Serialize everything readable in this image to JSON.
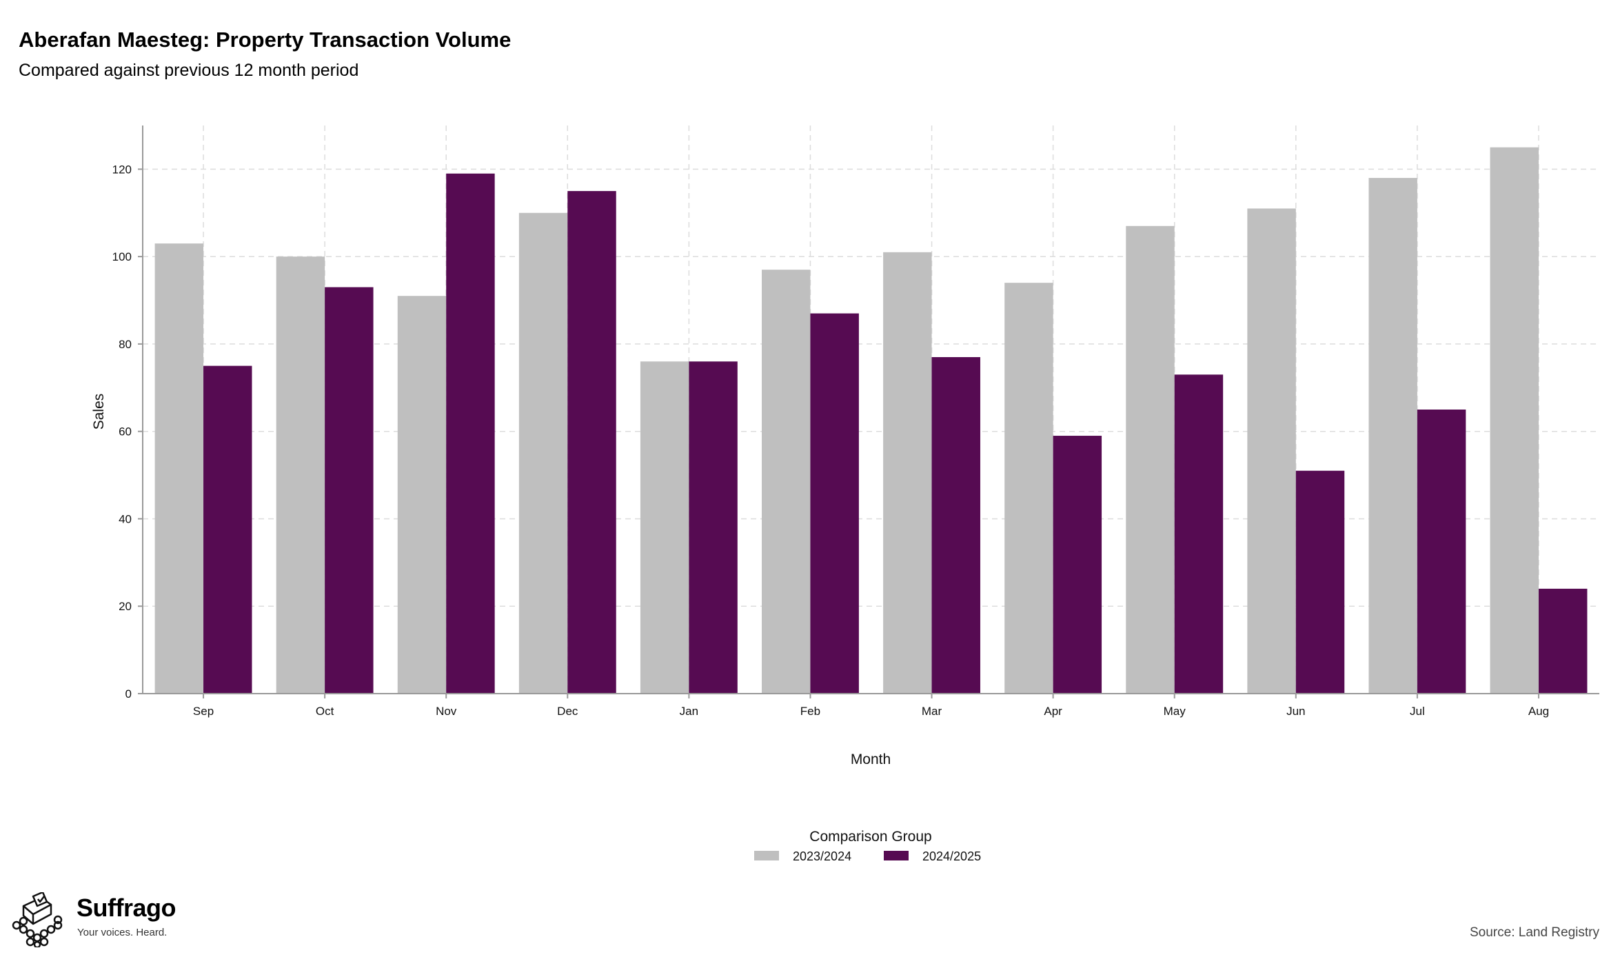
{
  "chart_data": {
    "type": "bar",
    "title": "Aberafan Maesteg: Property Transaction Volume",
    "subtitle": "Compared against previous 12 month period",
    "xlabel": "Month",
    "ylabel": "Sales",
    "ylim": [
      0,
      130
    ],
    "yticks": [
      0,
      20,
      40,
      60,
      80,
      100,
      120
    ],
    "grid": true,
    "legend_placement": "bottom",
    "legend_title": "Comparison Group",
    "categories": [
      "Sep",
      "Oct",
      "Nov",
      "Dec",
      "Jan",
      "Feb",
      "Mar",
      "Apr",
      "May",
      "Jun",
      "Jul",
      "Aug"
    ],
    "series": [
      {
        "name": "2023/2024",
        "color": "#bfbfbf",
        "values": [
          103,
          100,
          91,
          110,
          76,
          97,
          101,
          94,
          107,
          111,
          118,
          125
        ]
      },
      {
        "name": "2024/2025",
        "color": "#560b52",
        "values": [
          75,
          93,
          119,
          115,
          76,
          87,
          77,
          59,
          73,
          51,
          65,
          24
        ]
      }
    ]
  },
  "branding": {
    "name": "Suffrago",
    "tagline": "Your voices. Heard.",
    "logo_icon": "ballot-box-icon"
  },
  "footer": {
    "source": "Source: Land Registry"
  }
}
